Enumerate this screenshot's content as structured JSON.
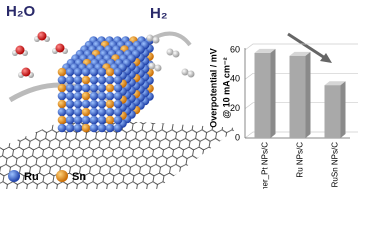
{
  "labels": {
    "reactant": "H₂O",
    "product": "H₂",
    "legend_ru": "Ru",
    "legend_sn": "Sn"
  },
  "chart_data": {
    "type": "bar",
    "ylabel": "Overpotential / mV",
    "ylabel2": "@ 10 mA cm⁻²",
    "categories": [
      "Commer_Pt NPs/C",
      "Ru NPs/C",
      "RuSn NPs/C"
    ],
    "values": [
      58,
      56,
      36
    ],
    "color": "#a9a9a9",
    "ylim": [
      0,
      60
    ],
    "yticks": [
      0,
      20,
      40,
      60
    ],
    "grid": true
  }
}
